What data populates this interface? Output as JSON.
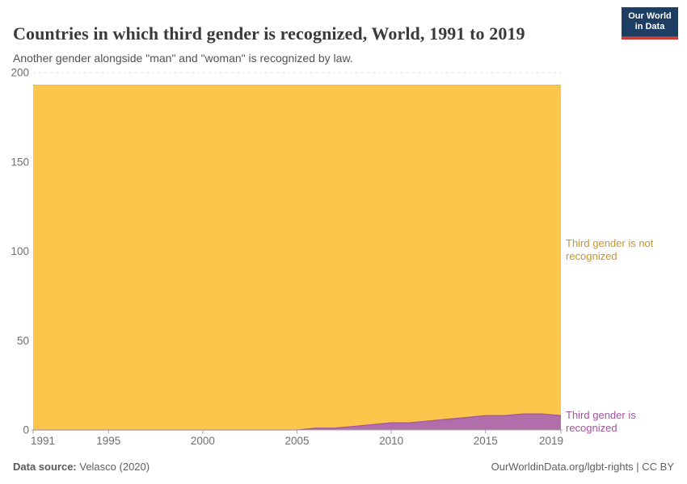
{
  "header": {
    "title": "Countries in which third gender is recognized, World, 1991 to 2019",
    "subtitle": "Another gender alongside \"man\" and \"woman\" is recognized by law."
  },
  "logo": {
    "line1": "Our World",
    "line2": "in Data",
    "bg_color": "#1d3d63",
    "accent_color": "#cc3b33"
  },
  "chart_data": {
    "type": "area",
    "stacked": true,
    "title": "Countries in which third gender is recognized, World, 1991 to 2019",
    "x": [
      1991,
      1992,
      1993,
      1994,
      1995,
      1996,
      1997,
      1998,
      1999,
      2000,
      2001,
      2002,
      2003,
      2004,
      2005,
      2006,
      2007,
      2008,
      2009,
      2010,
      2011,
      2012,
      2013,
      2014,
      2015,
      2016,
      2017,
      2018,
      2019
    ],
    "series": [
      {
        "name": "Third gender is recognized",
        "label_color": "#a2559c",
        "fill_color": "#b06eab",
        "edge_color": "#a2559c",
        "values": [
          0,
          0,
          0,
          0,
          0,
          0,
          0,
          0,
          0,
          0,
          0,
          0,
          0,
          0,
          0,
          1,
          1,
          2,
          3,
          4,
          4,
          5,
          6,
          7,
          8,
          8,
          9,
          9,
          8
        ]
      },
      {
        "name": "Third gender is not recognized",
        "label_color": "#c6952d",
        "fill_color": "#fbc64b",
        "edge_color": "#f3b93e",
        "values": [
          193,
          193,
          193,
          193,
          193,
          193,
          193,
          193,
          193,
          193,
          193,
          193,
          193,
          193,
          193,
          192,
          192,
          191,
          190,
          189,
          189,
          188,
          187,
          186,
          185,
          185,
          184,
          184,
          185
        ]
      }
    ],
    "ylim": [
      0,
      200
    ],
    "yticks": [
      0,
      50,
      100,
      150,
      200
    ],
    "xticks": [
      1991,
      1995,
      2000,
      2005,
      2010,
      2015,
      2019
    ],
    "grid": "dashed-horizontal",
    "legend": "right-edge-labels",
    "axis_text_color": "#6e6e6e",
    "grid_color": "#dcdcdc",
    "axis_line_color": "#a8a8a8",
    "right_labels": [
      {
        "series": "Third gender is not recognized",
        "line1": "Third gender is not",
        "line2": "recognized",
        "color": "#c6952d"
      },
      {
        "series": "Third gender is recognized",
        "line1": "Third gender is",
        "line2": "recognized",
        "color": "#a2559c"
      }
    ]
  },
  "footer": {
    "source_label": "Data source:",
    "source_value": " Velasco (2020)",
    "citation": "OurWorldinData.org/lgbt-rights | CC BY"
  }
}
